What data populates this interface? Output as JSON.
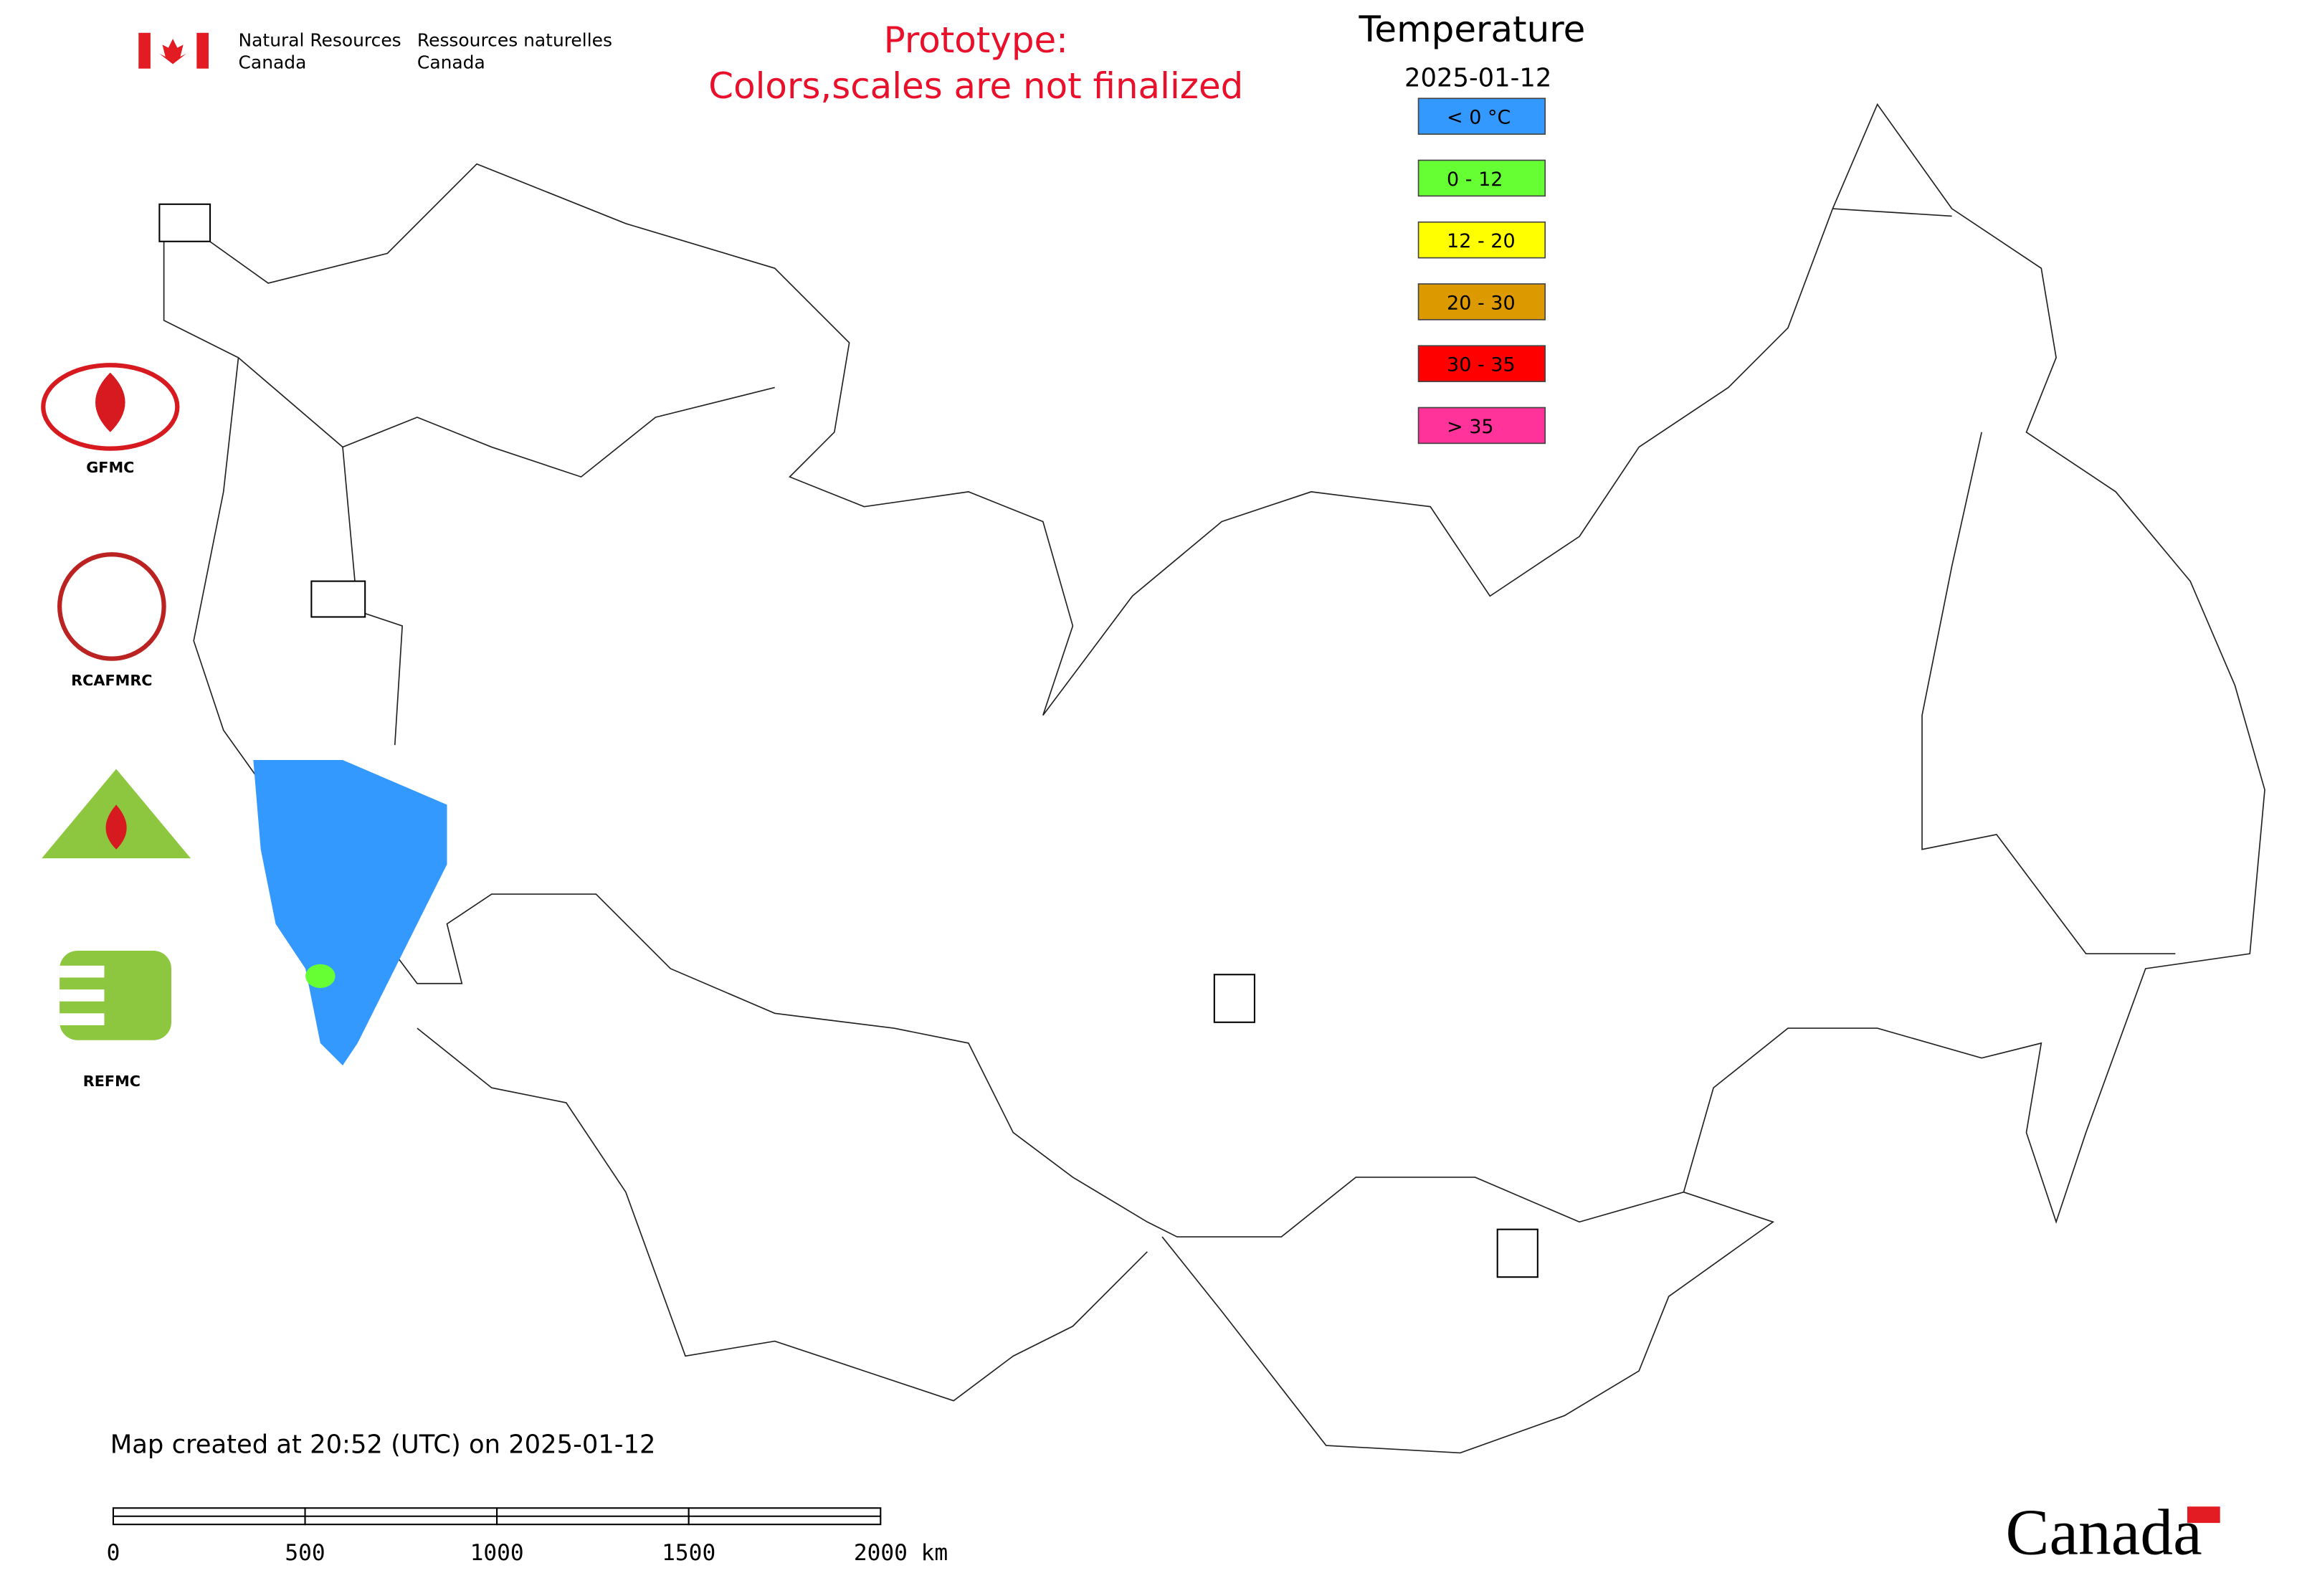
{
  "header": {
    "agency_en": [
      "Natural Resources",
      "Canada"
    ],
    "agency_fr": [
      "Ressources naturelles",
      "Canada"
    ],
    "notice": [
      "Prototype:",
      "Colors,scales are not finalized"
    ]
  },
  "legend": {
    "title": "Temperature",
    "date": "2025-01-12",
    "items": [
      {
        "label": "< 0 °C",
        "color": "#3399ff"
      },
      {
        "label": "0 - 12",
        "color": "#66ff33"
      },
      {
        "label": "12 - 20",
        "color": "#ffff00"
      },
      {
        "label": "20 - 30",
        "color": "#dd9900"
      },
      {
        "label": "30 - 35",
        "color": "#ff0000"
      },
      {
        "label": "> 35",
        "color": "#ff3399"
      }
    ]
  },
  "logos": [
    "GFMC",
    "RCAFMRC",
    "REFMC"
  ],
  "footer": {
    "created": "Map created at 20:52 (UTC) on 2025-01-12",
    "scale_bar": [
      "0",
      "500",
      "1000",
      "1500",
      "2000 km"
    ],
    "wordmark": "Canada"
  }
}
